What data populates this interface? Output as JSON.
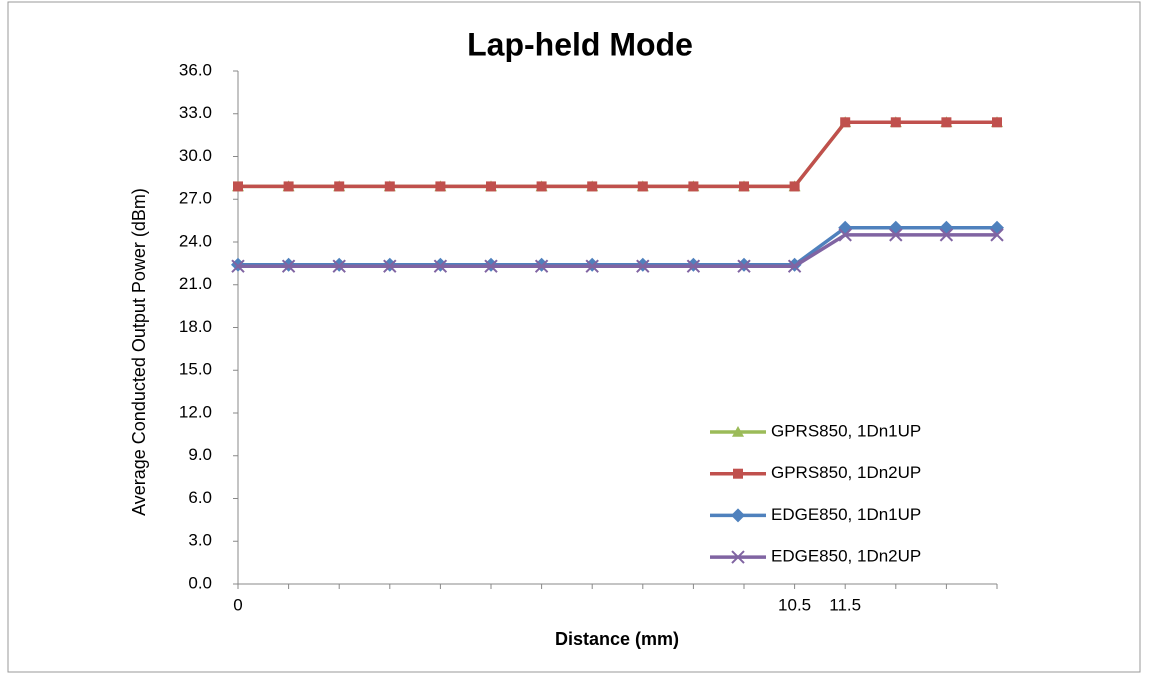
{
  "chart_data": {
    "type": "line",
    "title": "Lap-held Mode",
    "x_label": "Distance (mm)",
    "y_label": "Average Conducted Output Power (dBm)",
    "categories": [
      "0",
      null,
      null,
      null,
      null,
      null,
      null,
      null,
      null,
      null,
      null,
      "10.5",
      "11.5",
      null,
      null,
      null
    ],
    "series": [
      {
        "name": "GPRS850, 1Dn1UP",
        "color": "#9bbb59",
        "marker": "triangle",
        "values": [
          27.9,
          27.9,
          27.9,
          27.9,
          27.9,
          27.9,
          27.9,
          27.9,
          27.9,
          27.9,
          27.9,
          27.9,
          32.4,
          32.4,
          32.4,
          32.4
        ]
      },
      {
        "name": "GPRS850, 1Dn2UP",
        "color": "#c0504d",
        "marker": "square",
        "values": [
          27.9,
          27.9,
          27.9,
          27.9,
          27.9,
          27.9,
          27.9,
          27.9,
          27.9,
          27.9,
          27.9,
          27.9,
          32.4,
          32.4,
          32.4,
          32.4
        ]
      },
      {
        "name": "EDGE850, 1Dn1UP",
        "color": "#4f81bd",
        "marker": "diamond",
        "values": [
          22.4,
          22.4,
          22.4,
          22.4,
          22.4,
          22.4,
          22.4,
          22.4,
          22.4,
          22.4,
          22.4,
          22.4,
          25.0,
          25.0,
          25.0,
          25.0
        ]
      },
      {
        "name": "EDGE850, 1Dn2UP",
        "color": "#8064a2",
        "marker": "x",
        "values": [
          22.3,
          22.3,
          22.3,
          22.3,
          22.3,
          22.3,
          22.3,
          22.3,
          22.3,
          22.3,
          22.3,
          22.3,
          24.5,
          24.5,
          24.5,
          24.5
        ]
      }
    ],
    "ylim": [
      0,
      36
    ],
    "yticks": [
      {
        "value": 0,
        "label": "0.0"
      },
      {
        "value": 3,
        "label": "3.0"
      },
      {
        "value": 6,
        "label": "6.0"
      },
      {
        "value": 9,
        "label": "9.0"
      },
      {
        "value": 12,
        "label": "12.0"
      },
      {
        "value": 15,
        "label": "15.0"
      },
      {
        "value": 18,
        "label": "18.0"
      },
      {
        "value": 21,
        "label": "21.0"
      },
      {
        "value": 24,
        "label": "24.0"
      },
      {
        "value": 27,
        "label": "27.0"
      },
      {
        "value": 30,
        "label": "30.0"
      },
      {
        "value": 33,
        "label": "33.0"
      },
      {
        "value": 36,
        "label": "36.0"
      }
    ],
    "grid": false,
    "legend": "lower right"
  }
}
